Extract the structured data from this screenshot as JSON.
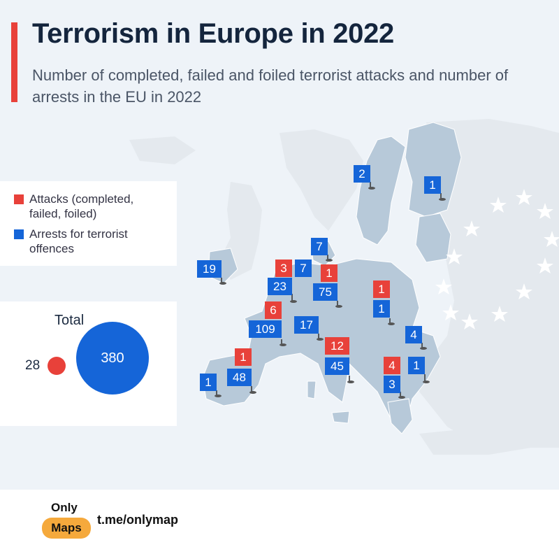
{
  "title": "Terrorism in Europe in 2022",
  "subtitle": "Number of completed, failed and foiled terrorist attacks and number of arrests in the EU in 2022",
  "colors": {
    "attacks": "#e8413a",
    "arrests": "#1565d8",
    "eu_land": "#b7c9d9",
    "other_land": "#e4e9ee",
    "sea": "#eef3f8"
  },
  "legend": {
    "attacks_label": "Attacks (completed, failed, foiled)",
    "arrests_label": "Arrests for terrorist offences"
  },
  "totals": {
    "label": "Total",
    "attacks": "28",
    "arrests": "380"
  },
  "markers": {
    "sweden_arrests": "2",
    "finland_arrests": "1",
    "denmark_arrests": "7",
    "ireland_arrests": "19",
    "belgium_attacks": "3",
    "netherlands_arrests": "7",
    "germany_attacks": "1",
    "belgium_arrests": "23",
    "germany_arrests": "75",
    "slovakia_attacks": "1",
    "slovakia_arrests": "1",
    "france_attacks": "6",
    "france_arrests": "109",
    "austria_arrests": "17",
    "romania_arrests": "4",
    "italy_attacks": "12",
    "italy_arrests": "45",
    "spain_attacks": "1",
    "spain_arrests": "48",
    "portugal_arrests": "1",
    "bulgaria_attacks": "4",
    "bulgaria_arrests": "1",
    "greece_arrests": "3"
  },
  "footer": {
    "brand_top": "Only",
    "brand_bottom": "Maps",
    "url": "t.me/onlymap"
  }
}
